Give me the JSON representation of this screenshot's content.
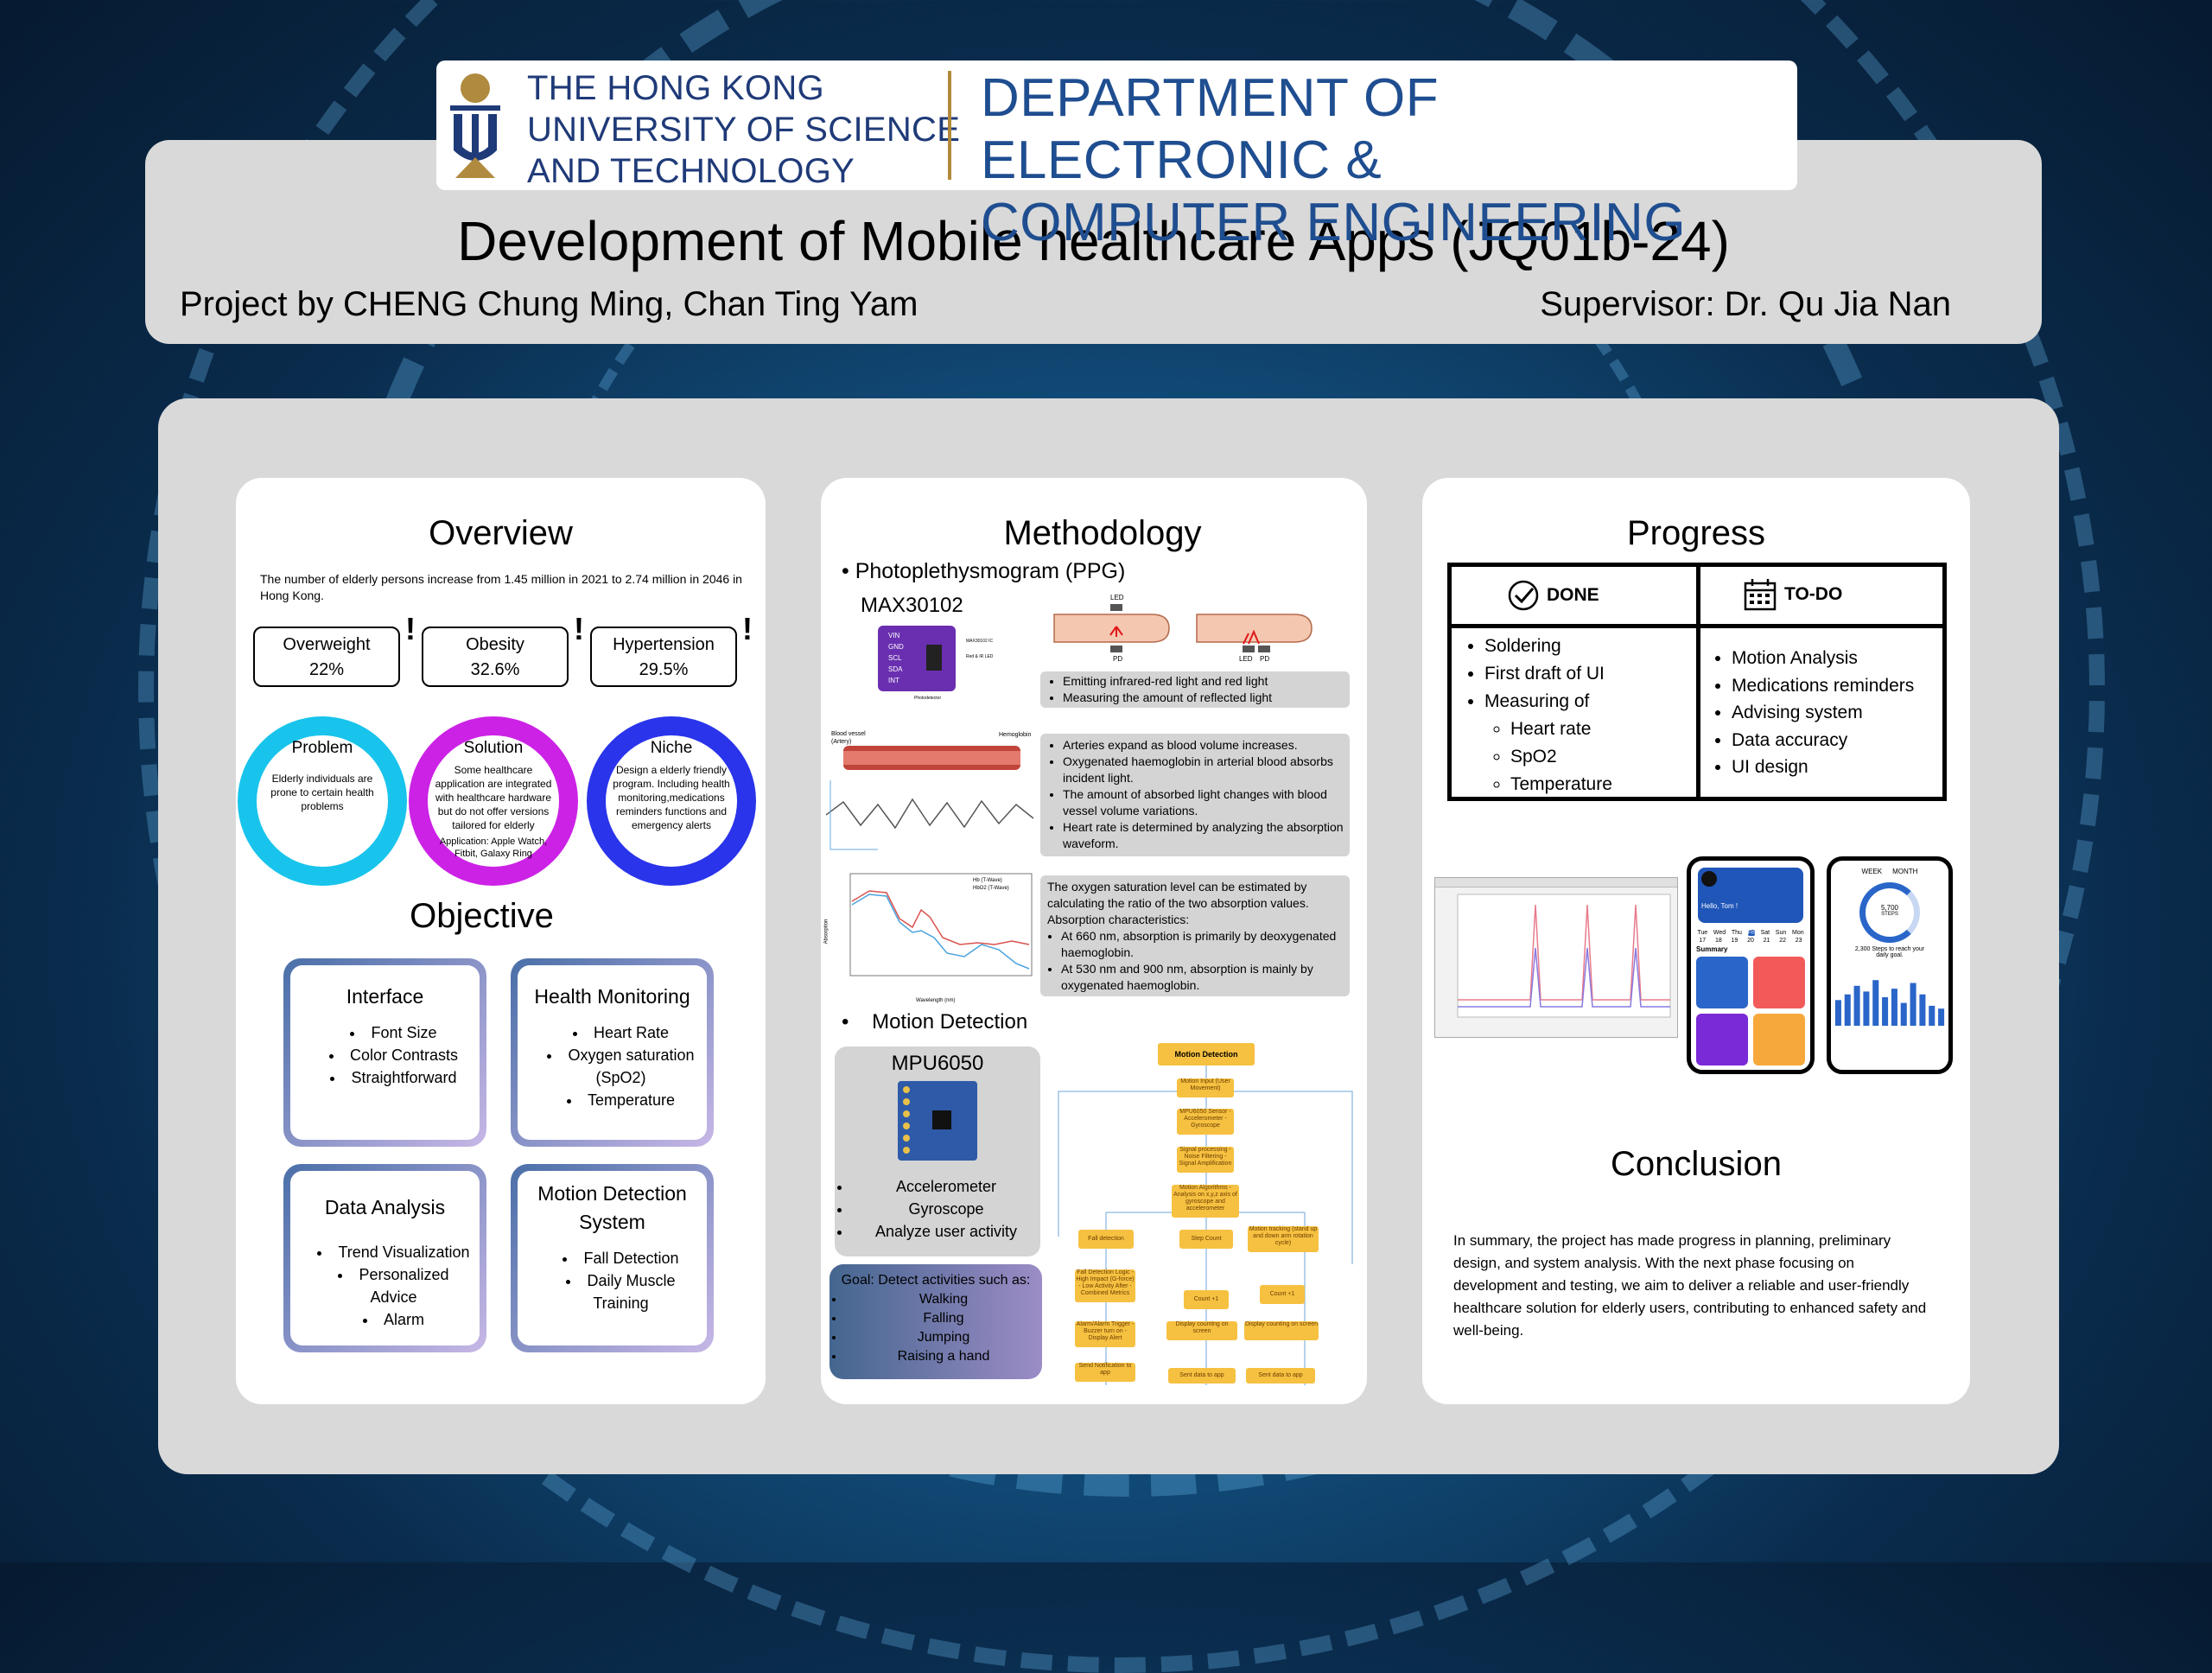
{
  "header": {
    "university_name": [
      "THE HONG KONG",
      "UNIVERSITY OF SCIENCE",
      "AND TECHNOLOGY"
    ],
    "department_name": [
      "DEPARTMENT OF ELECTRONIC &",
      "COMPUTER ENGINEERING"
    ],
    "title": "Development of Mobile healthcare Apps (JQ01b-24)",
    "authors": "Project by CHENG Chung Ming, Chan Ting Yam",
    "supervisor": "Supervisor: Dr. Qu Jia Nan"
  },
  "overview": {
    "heading": "Overview",
    "intro": "The number of elderly persons increase from 1.45 million in 2021 to 2.74 million in 2046 in Hong Kong.",
    "stats": [
      {
        "label": "Overweight",
        "value": "22%"
      },
      {
        "label": "Obesity",
        "value": "32.6%"
      },
      {
        "label": "Hypertension",
        "value": "29.5%"
      }
    ],
    "circles": [
      {
        "title": "Problem",
        "text": "Elderly individuals are prone to certain health problems",
        "color": "#18c4ec"
      },
      {
        "title": "Solution",
        "text": "Some healthcare application are integrated with healthcare hardware but do not offer versions tailored for elderly",
        "extra": "Application: Apple Watch, Fitbit, Galaxy Ring",
        "color": "#cc22e6"
      },
      {
        "title": "Niche",
        "text": "Design a elderly friendly program. Including health monitoring,medications reminders functions and emergency alerts",
        "color": "#2a34ea"
      }
    ]
  },
  "objective": {
    "heading": "Objective",
    "cards": [
      {
        "title": "Interface",
        "items": [
          "Font Size",
          "Color Contrasts",
          "Straightforward"
        ]
      },
      {
        "title": "Health Monitoring",
        "items": [
          "Heart Rate",
          "Oxygen saturation (SpO2)",
          "Temperature"
        ]
      },
      {
        "title": "Data Analysis",
        "items": [
          "Trend Visualization",
          "Personalized Advice",
          "Alarm"
        ]
      },
      {
        "title": "Motion Detection System",
        "items": [
          "Fall Detection",
          "Daily Muscle Training"
        ]
      }
    ]
  },
  "methodology": {
    "heading": "Methodology",
    "ppg_bullet": "Photoplethysmogram (PPG)",
    "sensor_name": "MAX30102",
    "sensor_pins": [
      "VIN",
      "GND",
      "SCL",
      "SDA",
      "INT"
    ],
    "sensor_labels": [
      "MAX30102 IC",
      "Red & IR LED",
      "Photodetector"
    ],
    "finger_labels": {
      "led": "LED",
      "pd": "PD"
    },
    "led_box": [
      "Emitting infrared-red light and red light",
      "Measuring the amount of reflected light"
    ],
    "vessel_labels": {
      "vessel": "Blood vessel (Artery)",
      "hb": "Hemoglobin"
    },
    "blood_box": [
      "Arteries expand as blood volume increases.",
      "Oxygenated haemoglobin in arterial blood absorbs incident light.",
      "The amount of absorbed light changes with blood vessel volume variations.",
      "Heart rate is determined by analyzing the absorption waveform."
    ],
    "absorption_intro": "The oxygen saturation level can be estimated by calculating the ratio of the two absorption values. Absorption characteristics:",
    "absorption_items": [
      "At 660 nm, absorption is primarily by deoxygenated haemoglobin.",
      "At 530 nm and 900 nm, absorption is mainly by oxygenated haemoglobin."
    ],
    "spectrum_legend": [
      "Hb (T-Wave)",
      "HbO2 (T-Wave)"
    ],
    "spectrum_xlabel": "Wavelength (nm)",
    "spectrum_ylabel": "Absorption",
    "motion_bullet": "Motion Detection",
    "mpu_name": "MPU6050",
    "mpu_items": [
      "Accelerometer",
      "Gyroscope",
      "Analyze user activity"
    ],
    "goal_title": "Goal: Detect activities such as:",
    "goal_items": [
      "Walking",
      "Falling",
      "Jumping",
      "Raising a hand"
    ],
    "flow_title": "Motion Detection",
    "flow_nodes": [
      "Motion Input (User Movement)",
      "MPU6050 Sensor - Accelerometer - Gyroscope",
      "Signal processing - Noise Filtering - Signal Amplification",
      "Motion Algorithms - Analysis on x,y,z axis of gyroscope and accelerometer",
      "Fall detection",
      "Step Count",
      "Motion tracking (stand up and down arm rotation cycle)",
      "Fall Detection Logic - High Impact (G-force) - Low Activity After - Combined Metrics",
      "Count +1",
      "Count +1",
      "Alarm/Alarm Trigger - Buzzer turn on - Display Alert",
      "Display counting on screen",
      "Display counting on screen",
      "Send Notification to app",
      "Sent data to app",
      "Sent data to app"
    ]
  },
  "progress": {
    "heading": "Progress",
    "done_label": "DONE",
    "todo_label": "TO-DO",
    "done_items": [
      "Soldering",
      "First draft of UI",
      "Measuring of"
    ],
    "done_subitems": [
      "Heart rate",
      "SpO2",
      "Temperature"
    ],
    "todo_items": [
      "Motion Analysis",
      "Medications reminders",
      "Advising system",
      "Data accuracy",
      "UI design"
    ],
    "phone2_greeting": "Hello, Tom !",
    "phone2_days": [
      "Tue",
      "Wed",
      "Thu",
      "Fri",
      "Sat",
      "Sun",
      "Mon"
    ],
    "phone2_dates": [
      "17",
      "18",
      "19",
      "20",
      "21",
      "22",
      "23"
    ],
    "phone2_summary": "Summary",
    "phone3_tabs": [
      "WEEK",
      "MONTH"
    ],
    "phone3_steps": "5,700",
    "phone3_steps_label": "STEPS",
    "phone3_goal": "2,300 Steps to reach your daily goal.",
    "phone3_bars": [
      0.45,
      0.55,
      0.7,
      0.6,
      0.8,
      0.5,
      0.65,
      0.4,
      0.75,
      0.55,
      0.35,
      0.3
    ],
    "colors": {
      "heart": "#f25a5a",
      "blue": "#2a66c9",
      "purple": "#7a2ad6",
      "orange": "#f6a93a"
    }
  },
  "conclusion": {
    "heading": "Conclusion",
    "text": "In summary, the project has made progress in planning, preliminary design, and system analysis. With the next phase focusing on development and testing, we aim to deliver a reliable and user-friendly healthcare solution for elderly users, contributing to enhanced safety and well-being."
  }
}
